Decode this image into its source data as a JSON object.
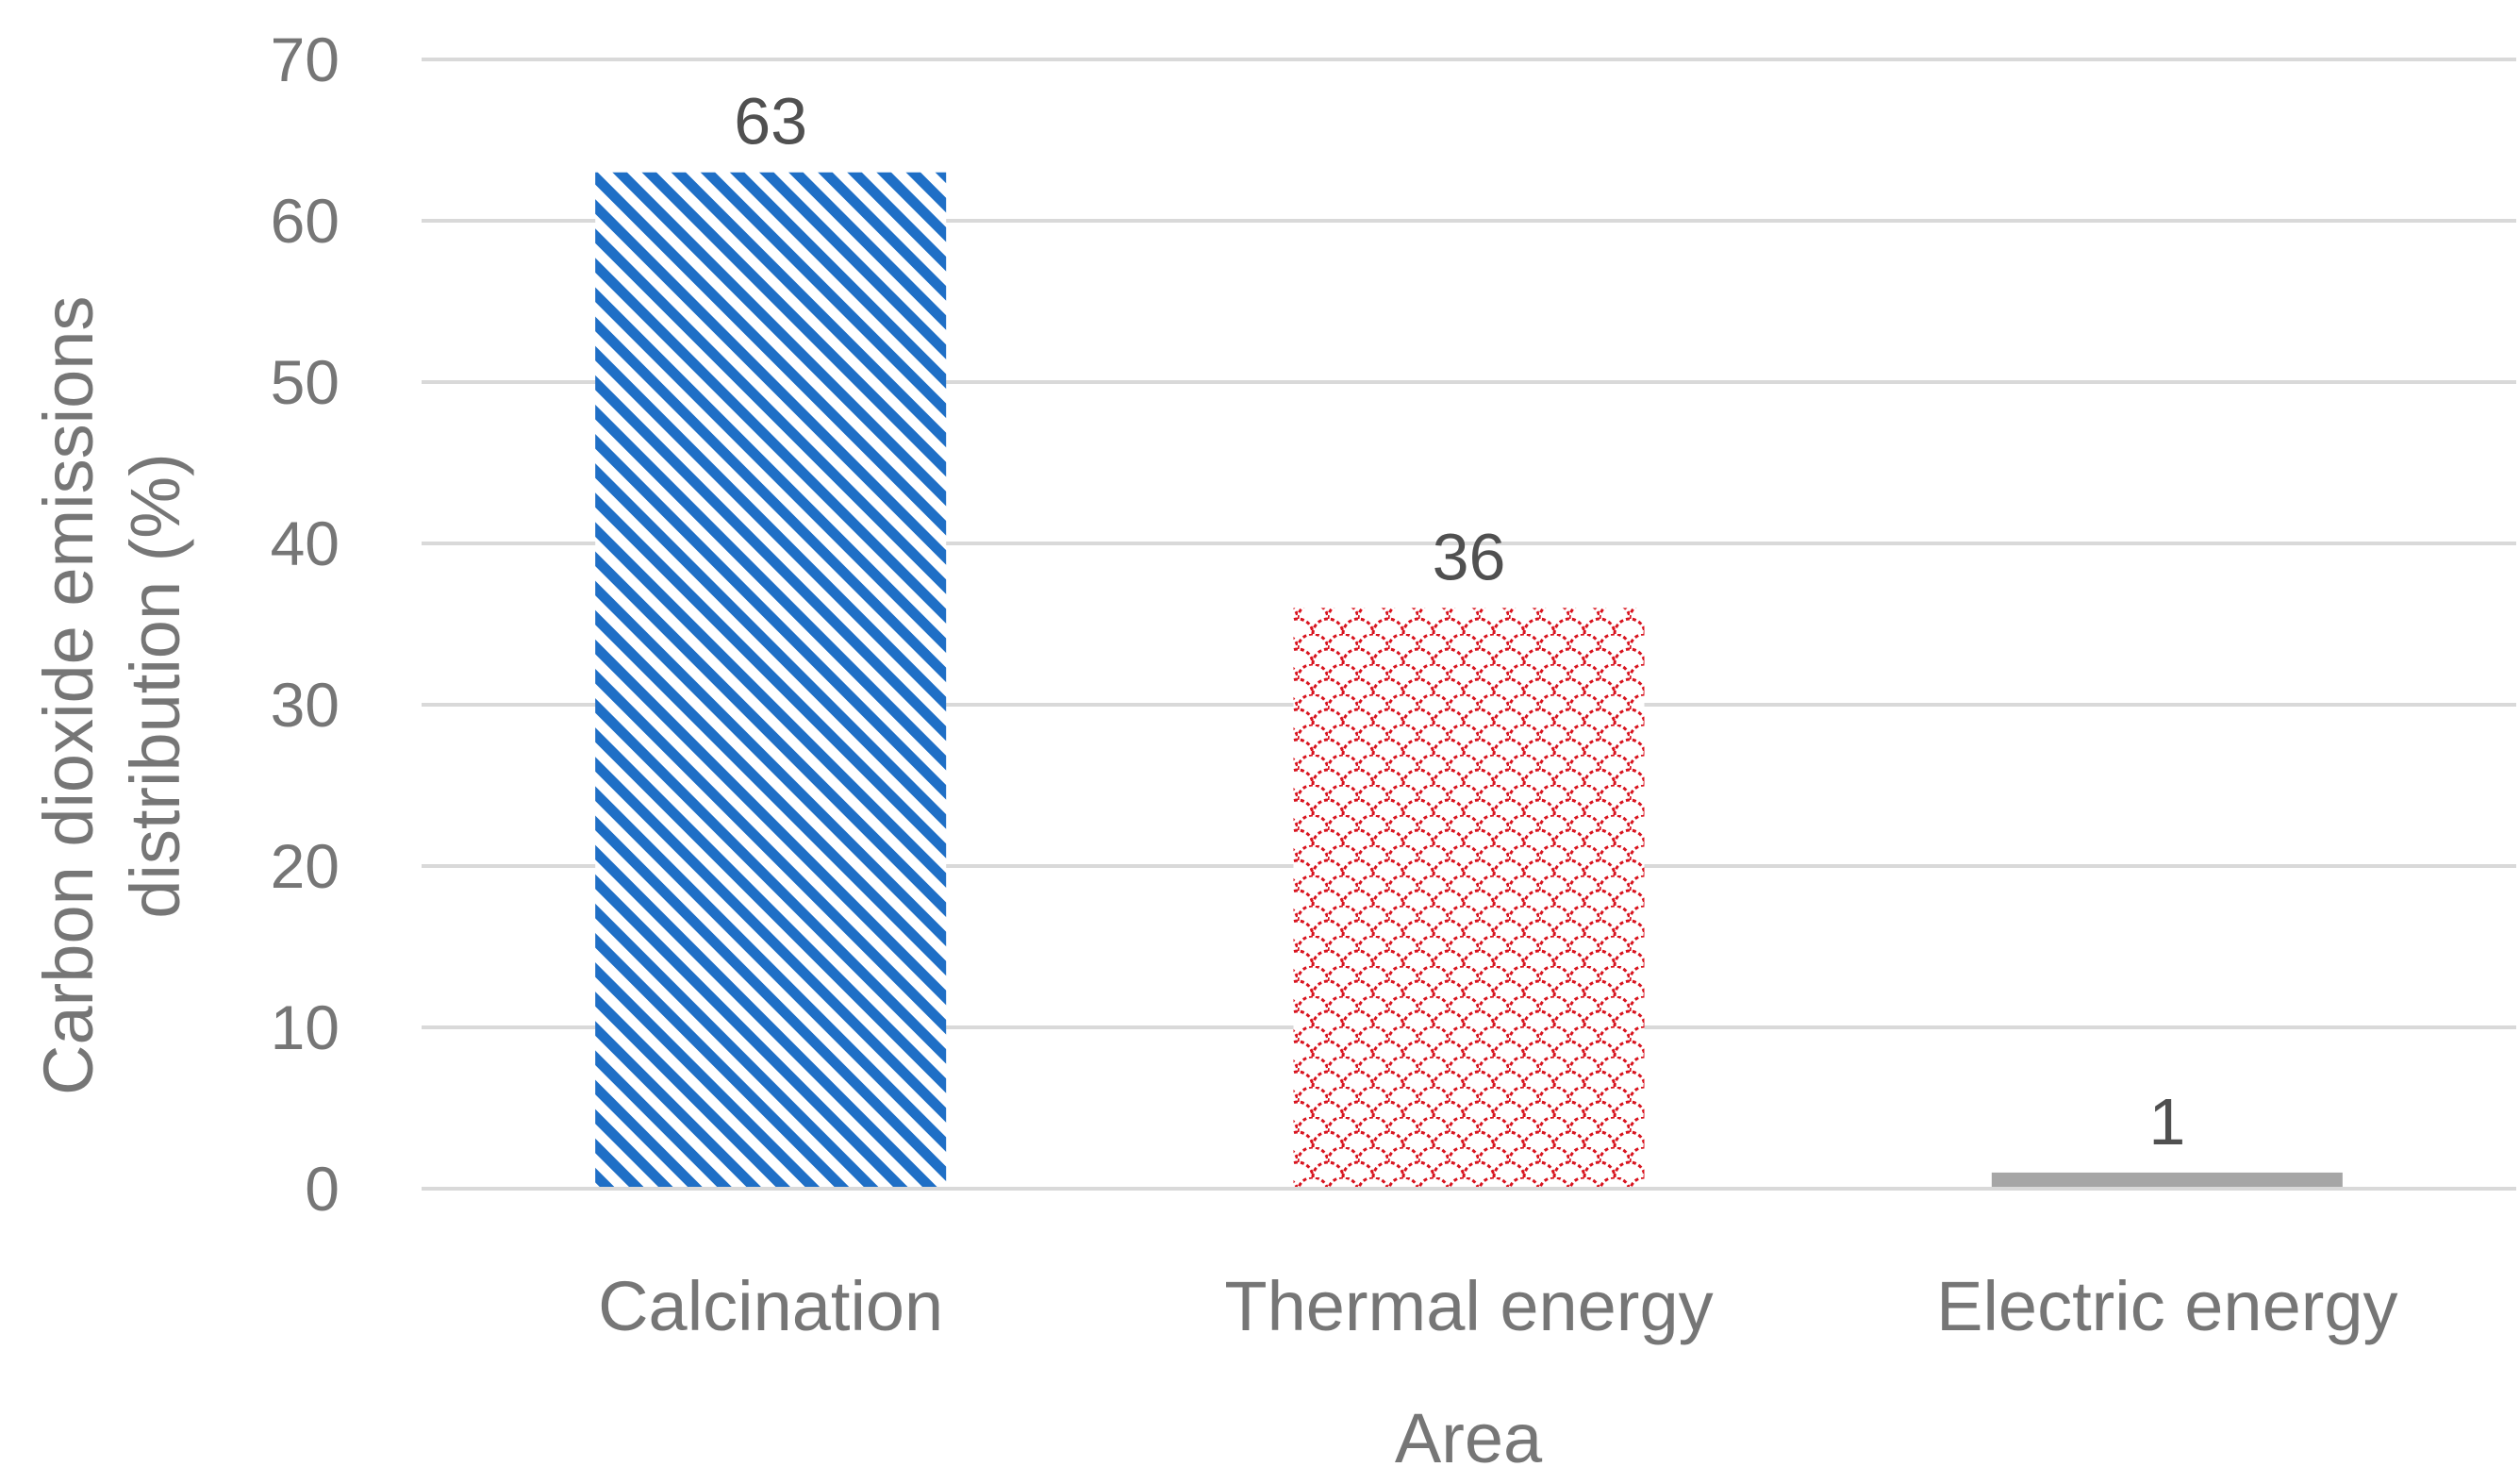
{
  "chart_data": {
    "type": "bar",
    "categories": [
      "Calcination",
      "Thermal energy",
      "Electric energy"
    ],
    "values": [
      63,
      36,
      1
    ],
    "data_labels": [
      "63",
      "36",
      "1"
    ],
    "title": "",
    "xlabel": "Area",
    "ylabel_lines": [
      "Carbon dioxide emissions",
      "distribution (%)"
    ],
    "ylim": [
      0,
      70
    ],
    "yticks": [
      0,
      10,
      20,
      30,
      40,
      50,
      60,
      70
    ],
    "ytick_labels": [
      "0",
      "10",
      "20",
      "30",
      "40",
      "50",
      "60",
      "70"
    ],
    "grid": true,
    "legend": "none",
    "colors": {
      "calcination": "#1f6fc6",
      "thermal": "#d8141f",
      "electric": "#a6a6a6",
      "grid": "#d9d9d9",
      "text": "#767676"
    }
  }
}
